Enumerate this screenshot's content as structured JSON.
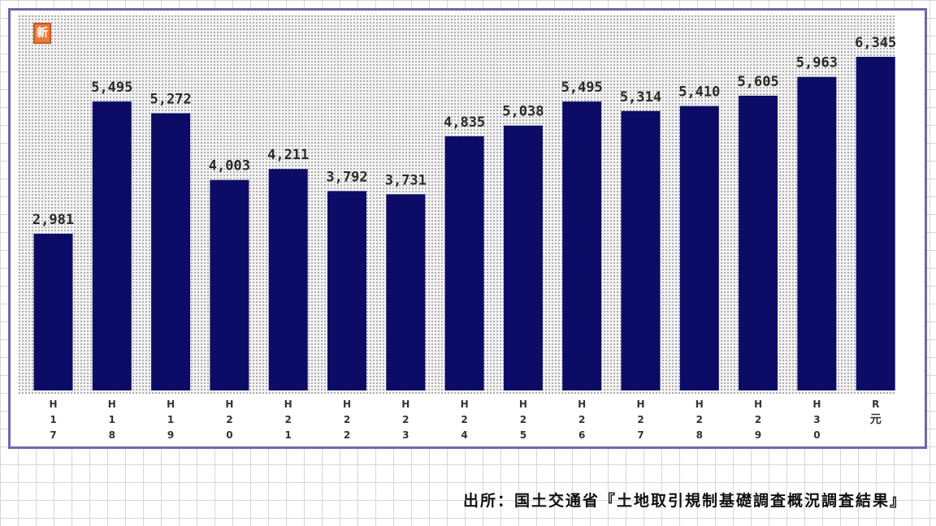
{
  "badge": {
    "label": "新",
    "color": "#ea7a3a"
  },
  "source_text": "出所：国土交通省『土地取引規制基礎調査概況調査結果』",
  "colors": {
    "bar": "#0c0c66",
    "frame": "#6a6aa8",
    "label": "#2a2a2a"
  },
  "chart_data": {
    "type": "bar",
    "categories": [
      [
        "H",
        "1",
        "7"
      ],
      [
        "H",
        "1",
        "8"
      ],
      [
        "H",
        "1",
        "9"
      ],
      [
        "H",
        "2",
        "0"
      ],
      [
        "H",
        "2",
        "1"
      ],
      [
        "H",
        "2",
        "2"
      ],
      [
        "H",
        "2",
        "3"
      ],
      [
        "H",
        "2",
        "4"
      ],
      [
        "H",
        "2",
        "5"
      ],
      [
        "H",
        "2",
        "6"
      ],
      [
        "H",
        "2",
        "7"
      ],
      [
        "H",
        "2",
        "8"
      ],
      [
        "H",
        "2",
        "9"
      ],
      [
        "H",
        "3",
        "0"
      ],
      [
        "R",
        "元"
      ]
    ],
    "values": [
      2981,
      5495,
      5272,
      4003,
      4211,
      3792,
      3731,
      4835,
      5038,
      5495,
      5314,
      5410,
      5605,
      5963,
      6345
    ],
    "value_labels": [
      "2,981",
      "5,495",
      "5,272",
      "4,003",
      "4,211",
      "3,792",
      "3,731",
      "4,835",
      "5,038",
      "5,495",
      "5,314",
      "5,410",
      "5,605",
      "5,963",
      "6,345"
    ],
    "ylim": [
      0,
      6500
    ],
    "grid": false,
    "legend": "none"
  }
}
